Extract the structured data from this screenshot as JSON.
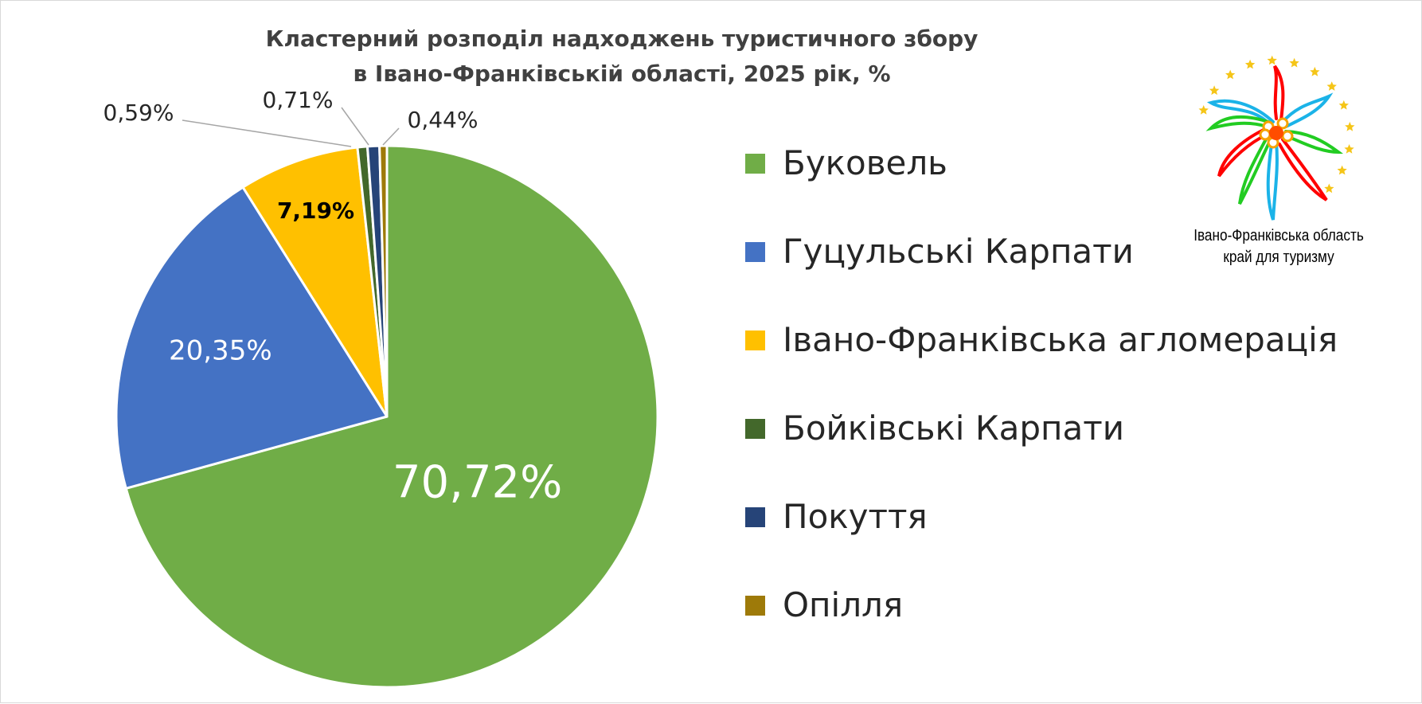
{
  "chart_data": {
    "type": "pie",
    "title": "Кластерний розподіл надходжень туристичного збору в Івано-Франківській області, 2025 рік, %",
    "title_lines": [
      "Кластерний розподіл надходжень туристичного збору",
      "в Івано-Франківській області, 2025 рік, %"
    ],
    "legend_position": "right",
    "slices": [
      {
        "label": "Буковель",
        "value": 70.72,
        "value_label": "70,72%",
        "color": "#70ad47",
        "label_placement": "inside",
        "label_color": "#ffffff",
        "label_bold": false
      },
      {
        "label": "Гуцульські Карпати",
        "value": 20.35,
        "value_label": "20,35%",
        "color": "#4472c4",
        "label_placement": "inside",
        "label_color": "#ffffff",
        "label_bold": false
      },
      {
        "label": "Івано-Франківська агломерація",
        "value": 7.19,
        "value_label": "7,19%",
        "color": "#ffc000",
        "label_placement": "inside",
        "label_color": "#000000",
        "label_bold": true
      },
      {
        "label": "Бойківські Карпати",
        "value": 0.59,
        "value_label": "0,59%",
        "color": "#43682b",
        "label_placement": "outside",
        "label_color": "#262626",
        "label_bold": false
      },
      {
        "label": "Покуття",
        "value": 0.71,
        "value_label": "0,71%",
        "color": "#264478",
        "label_placement": "outside",
        "label_color": "#262626",
        "label_bold": false
      },
      {
        "label": "Опілля",
        "value": 0.44,
        "value_label": "0,44%",
        "color": "#9e7a09",
        "label_placement": "outside",
        "label_color": "#262626",
        "label_bold": false
      }
    ]
  },
  "logo": {
    "caption_lines": [
      "Івано-Франківська область",
      "край для туризму"
    ]
  },
  "colors": {
    "title": "#404040",
    "legend_text": "#262626",
    "leader_line": "#a6a6a6",
    "logo_star": "#f5c518",
    "logo_petals": [
      "#ff0000",
      "#1bb3e8",
      "#22cc22",
      "#ff4d00"
    ]
  }
}
